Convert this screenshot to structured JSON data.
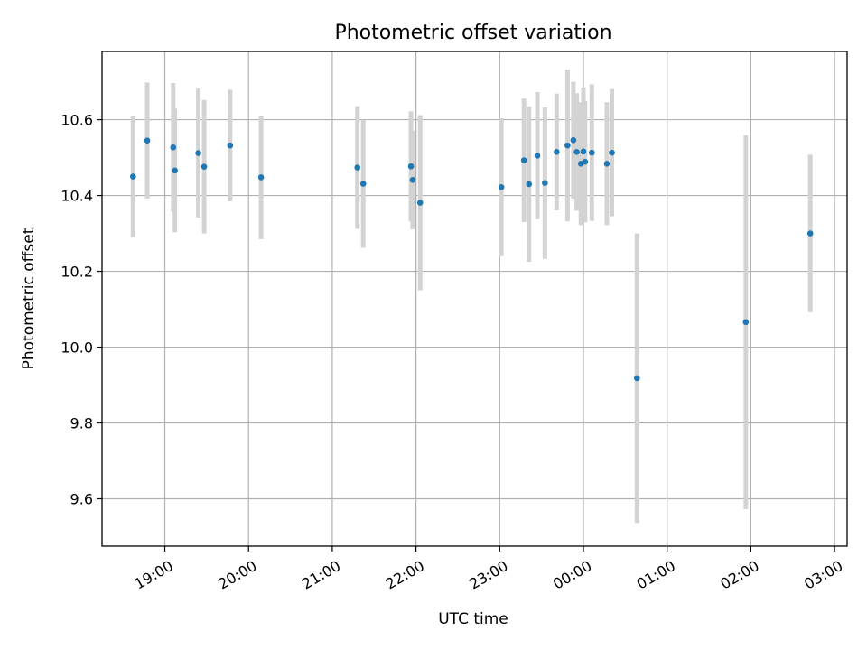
{
  "chart_data": {
    "type": "scatter",
    "title": "Photometric offset variation",
    "xlabel": "UTC time",
    "ylabel": "Photometric offset",
    "grid": true,
    "xlim": [
      18.25,
      27.15
    ],
    "ylim": [
      9.475,
      10.78
    ],
    "x_ticks": [
      {
        "value": 19,
        "label": "19:00"
      },
      {
        "value": 20,
        "label": "20:00"
      },
      {
        "value": 21,
        "label": "21:00"
      },
      {
        "value": 22,
        "label": "22:00"
      },
      {
        "value": 23,
        "label": "23:00"
      },
      {
        "value": 24,
        "label": "00:00"
      },
      {
        "value": 25,
        "label": "01:00"
      },
      {
        "value": 26,
        "label": "02:00"
      },
      {
        "value": 27,
        "label": "03:00"
      }
    ],
    "y_ticks": [
      {
        "value": 9.6,
        "label": "9.6"
      },
      {
        "value": 9.8,
        "label": "9.8"
      },
      {
        "value": 10.0,
        "label": "10.0"
      },
      {
        "value": 10.2,
        "label": "10.2"
      },
      {
        "value": 10.4,
        "label": "10.4"
      },
      {
        "value": 10.6,
        "label": "10.6"
      }
    ],
    "x_unit": "hours UTC (values past 24 are the following day)",
    "marker_color": "#1f77b4",
    "errorbar_color": "#d3d3d3",
    "points": [
      {
        "x": 18.62,
        "y": 10.45,
        "yerr": 0.16
      },
      {
        "x": 18.79,
        "y": 10.545,
        "yerr": 0.153
      },
      {
        "x": 19.1,
        "y": 10.527,
        "yerr": 0.17
      },
      {
        "x": 19.12,
        "y": 10.466,
        "yerr": 0.163
      },
      {
        "x": 19.4,
        "y": 10.512,
        "yerr": 0.17
      },
      {
        "x": 19.47,
        "y": 10.476,
        "yerr": 0.176
      },
      {
        "x": 19.78,
        "y": 10.532,
        "yerr": 0.147
      },
      {
        "x": 20.15,
        "y": 10.448,
        "yerr": 0.163
      },
      {
        "x": 21.3,
        "y": 10.474,
        "yerr": 0.162
      },
      {
        "x": 21.37,
        "y": 10.431,
        "yerr": 0.169
      },
      {
        "x": 21.94,
        "y": 10.477,
        "yerr": 0.145
      },
      {
        "x": 21.96,
        "y": 10.441,
        "yerr": 0.13
      },
      {
        "x": 22.05,
        "y": 10.381,
        "yerr": 0.231
      },
      {
        "x": 23.02,
        "y": 10.422,
        "yerr": 0.182
      },
      {
        "x": 23.29,
        "y": 10.493,
        "yerr": 0.163
      },
      {
        "x": 23.35,
        "y": 10.43,
        "yerr": 0.205
      },
      {
        "x": 23.45,
        "y": 10.505,
        "yerr": 0.168
      },
      {
        "x": 23.54,
        "y": 10.433,
        "yerr": 0.2
      },
      {
        "x": 23.68,
        "y": 10.515,
        "yerr": 0.154
      },
      {
        "x": 23.81,
        "y": 10.532,
        "yerr": 0.2
      },
      {
        "x": 23.88,
        "y": 10.546,
        "yerr": 0.154
      },
      {
        "x": 23.92,
        "y": 10.515,
        "yerr": 0.155
      },
      {
        "x": 23.97,
        "y": 10.484,
        "yerr": 0.162
      },
      {
        "x": 24.0,
        "y": 10.516,
        "yerr": 0.169
      },
      {
        "x": 24.02,
        "y": 10.489,
        "yerr": 0.16
      },
      {
        "x": 24.1,
        "y": 10.513,
        "yerr": 0.18
      },
      {
        "x": 24.28,
        "y": 10.484,
        "yerr": 0.162
      },
      {
        "x": 24.34,
        "y": 10.513,
        "yerr": 0.168
      },
      {
        "x": 24.64,
        "y": 9.918,
        "yerr": 0.382
      },
      {
        "x": 25.94,
        "y": 10.066,
        "yerr": 0.493
      },
      {
        "x": 26.71,
        "y": 10.3,
        "yerr": 0.208
      }
    ]
  }
}
